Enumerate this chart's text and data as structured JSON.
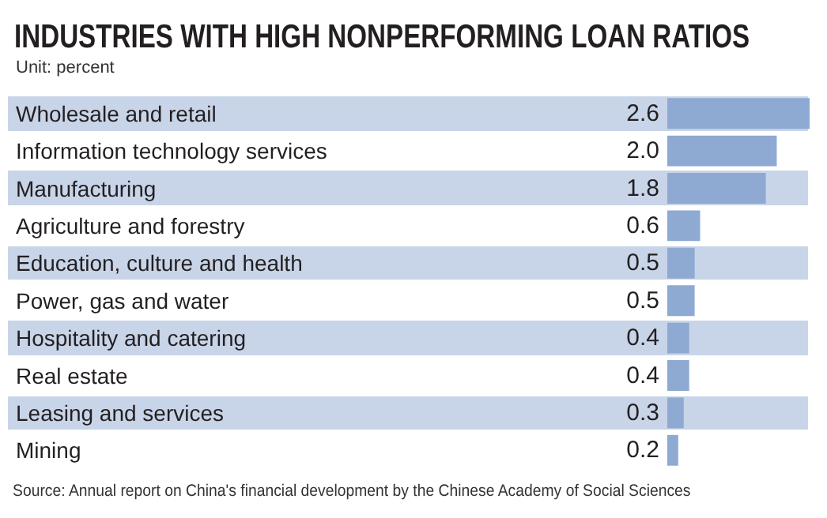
{
  "chart_data": {
    "type": "bar",
    "orientation": "horizontal",
    "title": "INDUSTRIES WITH HIGH NONPERFORMING LOAN RATIOS",
    "subtitle": "Unit: percent",
    "categories": [
      "Wholesale and retail",
      "Information technology services",
      "Manufacturing",
      "Agriculture and forestry",
      "Education, culture and health",
      "Power, gas and water",
      "Hospitality and catering",
      "Real estate",
      "Leasing and services",
      "Mining"
    ],
    "values": [
      2.6,
      2.0,
      1.8,
      0.6,
      0.5,
      0.5,
      0.4,
      0.4,
      0.3,
      0.2
    ],
    "value_labels": [
      "2.6",
      "2.0",
      "1.8",
      "0.6",
      "0.5",
      "0.5",
      "0.4",
      "0.4",
      "0.3",
      "0.2"
    ],
    "color": "#8eaad3",
    "annotations": [
      "Source: Annual report on China's financial development by the Chinese Academy of Social Sciences"
    ]
  }
}
